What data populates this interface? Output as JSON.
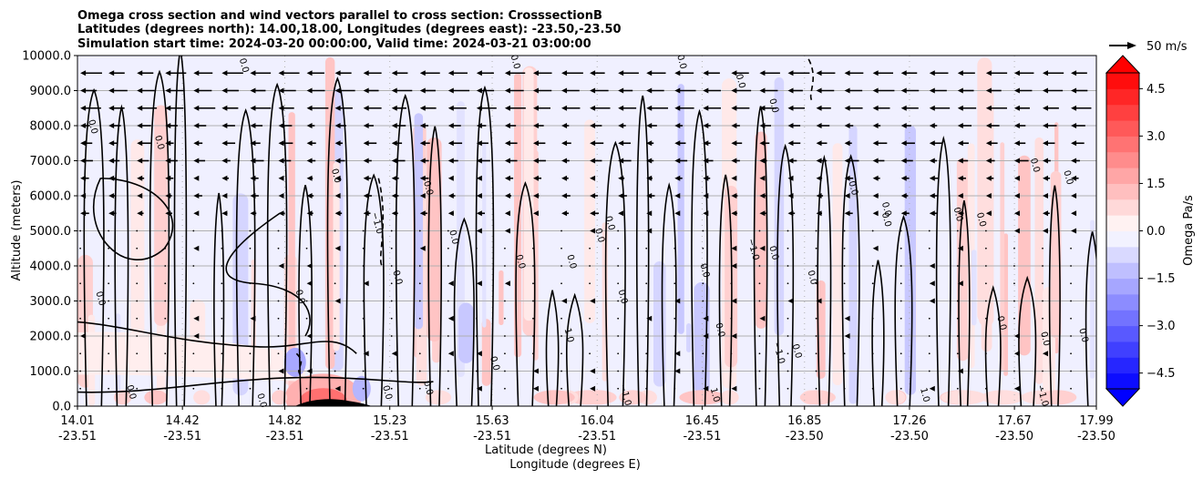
{
  "chart_data": {
    "type": "heatmap",
    "title": {
      "line1": "Omega cross section and wind vectors parallel to cross section: CrosssectionB",
      "line2": "Latitudes (degrees north): 14.00,18.00, Longitudes (degrees east): -23.50,-23.50",
      "line3": "Simulation start time: 2024-03-20 00:00:00, Valid time: 2024-03-21 03:00:00"
    },
    "xlabel": {
      "line1": "Latitude (degrees N)",
      "line2": "Longitude (degrees E)"
    },
    "ylabel": "Altitude (meters)",
    "xlim": [
      14.01,
      17.99
    ],
    "ylim": [
      0,
      10000
    ],
    "x_ticks": [
      {
        "lat": "14.01",
        "lon": "-23.51",
        "value": 14.01
      },
      {
        "lat": "14.42",
        "lon": "-23.51",
        "value": 14.42
      },
      {
        "lat": "14.82",
        "lon": "-23.51",
        "value": 14.82
      },
      {
        "lat": "15.23",
        "lon": "-23.51",
        "value": 15.23
      },
      {
        "lat": "15.63",
        "lon": "-23.51",
        "value": 15.63
      },
      {
        "lat": "16.04",
        "lon": "-23.51",
        "value": 16.04
      },
      {
        "lat": "16.45",
        "lon": "-23.51",
        "value": 16.45
      },
      {
        "lat": "16.85",
        "lon": "-23.50",
        "value": 16.85
      },
      {
        "lat": "17.26",
        "lon": "-23.50",
        "value": 17.26
      },
      {
        "lat": "17.67",
        "lon": "-23.50",
        "value": 17.67
      },
      {
        "lat": "17.99",
        "lon": "-23.50",
        "value": 17.99
      }
    ],
    "y_ticks": [
      {
        "label": "0.0",
        "value": 0
      },
      {
        "label": "1000.0",
        "value": 1000
      },
      {
        "label": "2000.0",
        "value": 2000
      },
      {
        "label": "3000.0",
        "value": 3000
      },
      {
        "label": "4000.0",
        "value": 4000
      },
      {
        "label": "5000.0",
        "value": 5000
      },
      {
        "label": "6000.0",
        "value": 6000
      },
      {
        "label": "7000.0",
        "value": 7000
      },
      {
        "label": "8000.0",
        "value": 8000
      },
      {
        "label": "9000.0",
        "value": 9000
      },
      {
        "label": "10000.0",
        "value": 10000
      }
    ],
    "grid": true,
    "colorbar": {
      "label": "Omega Pa/s",
      "range": [
        -5,
        5
      ],
      "ticks": [
        {
          "label": "4.5",
          "value": 4.5
        },
        {
          "label": "3.0",
          "value": 3.0
        },
        {
          "label": "1.5",
          "value": 1.5
        },
        {
          "label": "0.0",
          "value": 0.0
        },
        {
          "label": "−1.5",
          "value": -1.5
        },
        {
          "label": "−3.0",
          "value": -3.0
        },
        {
          "label": "−4.5",
          "value": -4.5
        }
      ],
      "colormap": "bwr",
      "extend": "both"
    },
    "quiver_key": {
      "label": "50 m/s",
      "speed": 50
    },
    "vector_rows_m": [
      500,
      1000,
      1500,
      2000,
      2500,
      3000,
      3500,
      4000,
      4500,
      5000,
      5500,
      6000,
      6500,
      7000,
      7500,
      8000,
      8500,
      9000,
      9500
    ],
    "contour_levels_shown": [
      "0.0",
      "−1.0",
      "1.0"
    ],
    "contour_labels": [
      {
        "text": "0.0",
        "lat": 14.06,
        "alt": 7950
      },
      {
        "text": "0.0",
        "lat": 14.09,
        "alt": 3050
      },
      {
        "text": "0.0",
        "lat": 14.21,
        "alt": 380
      },
      {
        "text": "0.0",
        "lat": 14.32,
        "alt": 7500
      },
      {
        "text": "0.0",
        "lat": 14.65,
        "alt": 9700
      },
      {
        "text": "0.0",
        "lat": 14.87,
        "alt": 3100
      },
      {
        "text": "0.0",
        "lat": 15.01,
        "alt": 6550
      },
      {
        "text": "0.0",
        "lat": 14.72,
        "alt": 140
      },
      {
        "text": "−1.0",
        "lat": 15.17,
        "alt": 5200
      },
      {
        "text": "0.0",
        "lat": 15.21,
        "alt": 370
      },
      {
        "text": "0.0",
        "lat": 15.25,
        "alt": 3650
      },
      {
        "text": "0.0",
        "lat": 15.37,
        "alt": 6200
      },
      {
        "text": "0.0",
        "lat": 15.37,
        "alt": 500
      },
      {
        "text": "0.0",
        "lat": 15.47,
        "alt": 4800
      },
      {
        "text": "0.0",
        "lat": 15.63,
        "alt": 1200
      },
      {
        "text": "0.0",
        "lat": 15.73,
        "alt": 4100
      },
      {
        "text": "0.0",
        "lat": 15.71,
        "alt": 9800
      },
      {
        "text": "1.0",
        "lat": 15.92,
        "alt": 2000
      },
      {
        "text": "0.0",
        "lat": 15.93,
        "alt": 4100
      },
      {
        "text": "0.0",
        "lat": 16.04,
        "alt": 4850
      },
      {
        "text": "0.0",
        "lat": 16.08,
        "alt": 5200
      },
      {
        "text": "0.0",
        "lat": 16.13,
        "alt": 3100
      },
      {
        "text": "−1.0",
        "lat": 16.14,
        "alt": 300
      },
      {
        "text": "0.0",
        "lat": 16.36,
        "alt": 9800
      },
      {
        "text": "0.0",
        "lat": 16.45,
        "alt": 3850
      },
      {
        "text": "1.0",
        "lat": 16.49,
        "alt": 300
      },
      {
        "text": "0.0",
        "lat": 16.51,
        "alt": 2150
      },
      {
        "text": "0.0",
        "lat": 16.59,
        "alt": 9250
      },
      {
        "text": "−1.0",
        "lat": 16.64,
        "alt": 4450
      },
      {
        "text": "0.0",
        "lat": 16.72,
        "alt": 4350
      },
      {
        "text": "0.0",
        "lat": 16.72,
        "alt": 8550
      },
      {
        "text": "−1.0",
        "lat": 16.74,
        "alt": 1500
      },
      {
        "text": "0.0",
        "lat": 16.81,
        "alt": 1550
      },
      {
        "text": "0.0",
        "lat": 16.87,
        "alt": 3650
      },
      {
        "text": "0.0",
        "lat": 17.03,
        "alt": 6200
      },
      {
        "text": "0.0",
        "lat": 17.16,
        "alt": 5600
      },
      {
        "text": "0.0",
        "lat": 17.16,
        "alt": 5300
      },
      {
        "text": "1.0",
        "lat": 17.31,
        "alt": 300
      },
      {
        "text": "0.0",
        "lat": 17.44,
        "alt": 5450
      },
      {
        "text": "0.0",
        "lat": 17.53,
        "alt": 5300
      },
      {
        "text": "0.0",
        "lat": 17.61,
        "alt": 2350
      },
      {
        "text": "0.0",
        "lat": 17.74,
        "alt": 6850
      },
      {
        "text": "0.0",
        "lat": 17.78,
        "alt": 1900
      },
      {
        "text": "0.0",
        "lat": 17.87,
        "alt": 6500
      },
      {
        "text": "−1.0",
        "lat": 17.77,
        "alt": 280
      },
      {
        "text": "0.0",
        "lat": 17.93,
        "alt": 2000
      }
    ]
  }
}
